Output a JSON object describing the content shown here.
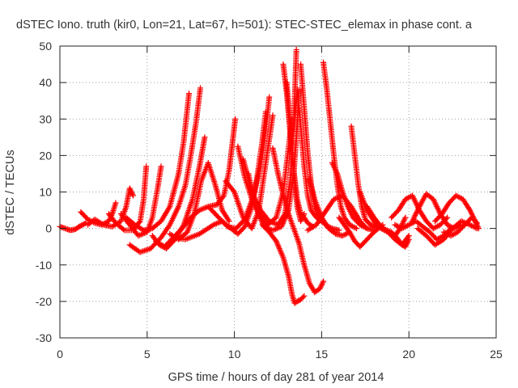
{
  "chart_data": {
    "type": "scatter",
    "title": "dSTEC Iono. truth (kir0, Lon=21, Lat=67, h=501): STEC-STEC_elemax in phase cont. a",
    "xlabel": "GPS time / hours of day 281 of year 2014",
    "ylabel": "dSTEC  / TECUs",
    "xlim": [
      0,
      25
    ],
    "ylim": [
      -30,
      50
    ],
    "x_ticks": [
      "0",
      "5",
      "10",
      "15",
      "20",
      "25"
    ],
    "y_ticks": [
      "-30",
      "-20",
      "-10",
      "0",
      "10",
      "20",
      "30",
      "40",
      "50"
    ],
    "grid": true,
    "legend": "none",
    "marker": "plus",
    "color": "#ff0000",
    "arcs": [
      {
        "x": [
          0.0,
          0.3,
          0.6,
          0.9,
          1.1,
          1.3,
          1.5
        ],
        "y": [
          0.5,
          0.0,
          -0.5,
          -0.2,
          0.5,
          1.0,
          1.5
        ]
      },
      {
        "x": [
          1.2,
          1.6,
          2.0,
          2.4,
          2.8,
          3.0,
          3.2
        ],
        "y": [
          4.5,
          2.5,
          1.5,
          1.0,
          2.0,
          4.0,
          7.0
        ]
      },
      {
        "x": [
          1.6,
          2.0,
          2.5,
          3.0,
          3.5,
          3.8,
          4.0,
          4.2
        ],
        "y": [
          1.0,
          2.5,
          1.0,
          0.5,
          2.0,
          6.0,
          11.0,
          9.0
        ]
      },
      {
        "x": [
          2.8,
          3.2,
          3.7,
          4.2,
          4.6,
          4.8,
          4.95
        ],
        "y": [
          4.0,
          1.5,
          -0.5,
          -0.5,
          2.0,
          8.0,
          17.0
        ]
      },
      {
        "x": [
          3.5,
          4.0,
          4.5,
          5.0,
          5.3,
          5.6,
          5.8
        ],
        "y": [
          4.0,
          1.0,
          -2.0,
          -1.0,
          3.0,
          11.0,
          17.0
        ]
      },
      {
        "x": [
          3.8,
          4.3,
          4.8,
          5.3,
          5.8,
          6.3,
          6.8,
          7.1,
          7.4
        ],
        "y": [
          3.0,
          1.0,
          -0.5,
          0.0,
          2.0,
          6.0,
          15.0,
          24.0,
          37.0
        ]
      },
      {
        "x": [
          4.0,
          4.6,
          5.2,
          5.8,
          6.3,
          6.8,
          7.2,
          7.5,
          7.8,
          8.05
        ],
        "y": [
          -4.5,
          -6.5,
          -5.5,
          -2.5,
          1.0,
          6.0,
          12.0,
          20.0,
          29.0,
          38.5
        ]
      },
      {
        "x": [
          5.3,
          5.7,
          6.1,
          6.6,
          7.1,
          7.6,
          8.0,
          8.3
        ],
        "y": [
          -2.0,
          -4.5,
          -5.5,
          -3.0,
          1.0,
          8.0,
          17.0,
          25.0
        ]
      },
      {
        "x": [
          5.5,
          6.0,
          6.5,
          7.0,
          7.5,
          8.0,
          8.5,
          9.0,
          9.4,
          9.7,
          9.9,
          10.05
        ],
        "y": [
          -3.5,
          -5.0,
          -2.5,
          0.0,
          3.0,
          5.0,
          6.0,
          6.5,
          9.0,
          16.0,
          24.0,
          30.0
        ]
      },
      {
        "x": [
          6.3,
          6.8,
          7.3,
          7.7,
          8.1,
          8.5,
          8.9,
          9.3,
          9.7
        ],
        "y": [
          -1.5,
          -3.0,
          -1.0,
          4.0,
          13.0,
          18.0,
          12.0,
          5.0,
          2.0
        ]
      },
      {
        "x": [
          6.5,
          7.2,
          8.0,
          8.8,
          9.3,
          9.8,
          10.2,
          10.6,
          11.0,
          11.3,
          11.6,
          11.8
        ],
        "y": [
          -2.5,
          -3.0,
          -1.5,
          1.0,
          2.0,
          0.0,
          -1.5,
          0.5,
          6.0,
          14.0,
          24.0,
          32.0
        ]
      },
      {
        "x": [
          8.6,
          9.1,
          9.6,
          10.1,
          10.6,
          11.1,
          11.5,
          11.8,
          12.0
        ],
        "y": [
          5.5,
          3.0,
          0.5,
          0.0,
          2.5,
          9.0,
          17.0,
          27.0,
          36.0
        ]
      },
      {
        "x": [
          9.5,
          10.0,
          10.5,
          11.0,
          11.4,
          11.8,
          12.2
        ],
        "y": [
          13.0,
          10.0,
          3.0,
          0.0,
          5.0,
          18.0,
          31.0
        ]
      },
      {
        "x": [
          10.2,
          10.6,
          11.0,
          11.4,
          11.9,
          12.4,
          12.8,
          13.1,
          13.3
        ],
        "y": [
          22.5,
          14.0,
          8.0,
          4.0,
          1.0,
          3.0,
          10.0,
          22.0,
          30.0
        ]
      },
      {
        "x": [
          10.5,
          11.0,
          11.5,
          12.0,
          12.5,
          12.9,
          13.2,
          13.4,
          13.55
        ],
        "y": [
          19.0,
          10.0,
          5.0,
          2.0,
          1.0,
          4.0,
          13.0,
          28.0,
          49.0
        ]
      },
      {
        "x": [
          10.8,
          11.2,
          11.7,
          12.2,
          12.7,
          13.1,
          13.4,
          13.6,
          13.7
        ],
        "y": [
          15.0,
          6.0,
          0.5,
          -0.5,
          0.5,
          5.0,
          15.0,
          28.0,
          38.0
        ]
      },
      {
        "x": [
          11.6,
          12.0,
          12.4,
          12.8,
          13.1,
          13.3,
          13.45,
          13.6,
          13.8,
          14.0
        ],
        "y": [
          1.0,
          -1.0,
          -3.5,
          -8.0,
          -13.0,
          -18.0,
          -20.5,
          -20.0,
          -19.5,
          -18.5
        ]
      },
      {
        "x": [
          12.2,
          12.5,
          12.8,
          13.1,
          13.4,
          13.7,
          14.0,
          14.3,
          14.6,
          14.9,
          15.1
        ],
        "y": [
          22.0,
          15.0,
          9.0,
          4.0,
          0.0,
          -4.0,
          -10.0,
          -15.0,
          -17.5,
          -16.5,
          -14.5
        ]
      },
      {
        "x": [
          12.8,
          13.0,
          13.2,
          13.4,
          13.6,
          13.8,
          14.0
        ],
        "y": [
          45.0,
          37.0,
          26.0,
          15.0,
          6.0,
          2.0,
          4.0
        ]
      },
      {
        "x": [
          13.0,
          13.2,
          13.4,
          13.6,
          13.8,
          14.0,
          14.2,
          14.5
        ],
        "y": [
          40.0,
          28.0,
          16.0,
          8.0,
          4.0,
          3.0,
          1.5,
          0.5
        ]
      },
      {
        "x": [
          13.4,
          13.6,
          13.8,
          14.0,
          14.2,
          14.4,
          14.7,
          15.0
        ],
        "y": [
          27.0,
          38.0,
          28.0,
          17.0,
          9.0,
          5.0,
          3.0,
          2.0
        ]
      },
      {
        "x": [
          13.8,
          14.0,
          14.2,
          14.4,
          14.6,
          14.9,
          15.2,
          15.6,
          16.0
        ],
        "y": [
          45.0,
          33.0,
          21.0,
          12.0,
          6.0,
          3.0,
          1.0,
          0.0,
          -0.5
        ]
      },
      {
        "x": [
          14.3,
          14.6,
          15.0,
          15.4,
          15.8,
          16.2,
          16.6
        ],
        "y": [
          13.5,
          8.0,
          3.0,
          0.0,
          -1.5,
          -2.0,
          -1.0
        ]
      },
      {
        "x": [
          15.1,
          15.3,
          15.5,
          15.7,
          15.9,
          16.1,
          16.3,
          16.6,
          17.0
        ],
        "y": [
          45.5,
          38.0,
          29.0,
          20.0,
          12.0,
          6.0,
          3.0,
          1.0,
          0.0
        ]
      },
      {
        "x": [
          14.2,
          14.7,
          15.2,
          15.7,
          16.2,
          16.7,
          17.2,
          17.6
        ],
        "y": [
          -0.5,
          1.0,
          4.5,
          8.0,
          9.0,
          6.0,
          2.0,
          0.0
        ]
      },
      {
        "x": [
          15.6,
          15.9,
          16.2,
          16.5,
          16.8,
          17.2,
          17.6,
          18.0
        ],
        "y": [
          18.0,
          15.0,
          10.0,
          6.0,
          3.0,
          1.0,
          0.0,
          -0.5
        ]
      },
      {
        "x": [
          16.7,
          16.9,
          17.1,
          17.3,
          17.5,
          17.8,
          18.1
        ],
        "y": [
          28.0,
          20.0,
          12.0,
          6.0,
          2.5,
          1.0,
          0.5
        ]
      },
      {
        "x": [
          16.0,
          16.3,
          16.6,
          16.9,
          17.2,
          17.6,
          18.0,
          18.5
        ],
        "y": [
          3.0,
          1.0,
          -1.0,
          -3.5,
          -5.0,
          -3.0,
          -1.0,
          1.0
        ]
      },
      {
        "x": [
          17.2,
          17.6,
          18.0,
          18.4,
          18.8,
          19.2,
          19.5,
          19.8
        ],
        "y": [
          10.0,
          5.0,
          2.0,
          0.0,
          -1.0,
          -2.0,
          0.0,
          3.0
        ]
      },
      {
        "x": [
          17.6,
          18.0,
          18.4,
          18.8,
          19.2,
          19.6,
          20.0
        ],
        "y": [
          6.0,
          3.0,
          0.5,
          -1.0,
          -3.0,
          -4.5,
          -2.0
        ]
      },
      {
        "x": [
          18.0,
          18.5,
          19.0,
          19.3,
          19.6,
          19.8,
          20.0
        ],
        "y": [
          1.0,
          0.0,
          -1.0,
          -2.5,
          -4.5,
          -5.0,
          -3.0
        ]
      },
      {
        "x": [
          19.0,
          19.4,
          19.8,
          20.2,
          20.6,
          21.0,
          21.4,
          21.8,
          22.2
        ],
        "y": [
          3.0,
          5.0,
          8.0,
          9.0,
          5.0,
          2.0,
          0.0,
          1.0,
          3.0
        ]
      },
      {
        "x": [
          19.2,
          19.6,
          20.0,
          20.4,
          20.8,
          21.2,
          21.6,
          22.0,
          22.4
        ],
        "y": [
          1.0,
          0.0,
          1.0,
          2.0,
          0.5,
          -1.0,
          -3.0,
          -2.0,
          0.0
        ]
      },
      {
        "x": [
          20.2,
          20.6,
          21.0,
          21.4,
          21.8,
          22.2,
          22.6,
          23.0
        ],
        "y": [
          2.0,
          6.0,
          9.5,
          8.0,
          4.0,
          1.0,
          0.0,
          1.0
        ]
      },
      {
        "x": [
          20.5,
          21.0,
          21.5,
          22.0,
          22.5,
          23.0,
          23.5,
          23.9
        ],
        "y": [
          0.0,
          -2.0,
          -4.5,
          -3.0,
          0.0,
          2.0,
          1.0,
          0.0
        ]
      },
      {
        "x": [
          21.5,
          21.9,
          22.3,
          22.7,
          23.1,
          23.5,
          23.8,
          24.0
        ],
        "y": [
          2.0,
          4.0,
          7.0,
          9.0,
          8.0,
          5.0,
          2.0,
          0.0
        ]
      },
      {
        "x": [
          22.0,
          22.4,
          22.8,
          23.2,
          23.6,
          23.9
        ],
        "y": [
          -1.0,
          -2.0,
          -1.0,
          1.0,
          3.0,
          1.5
        ]
      }
    ]
  }
}
